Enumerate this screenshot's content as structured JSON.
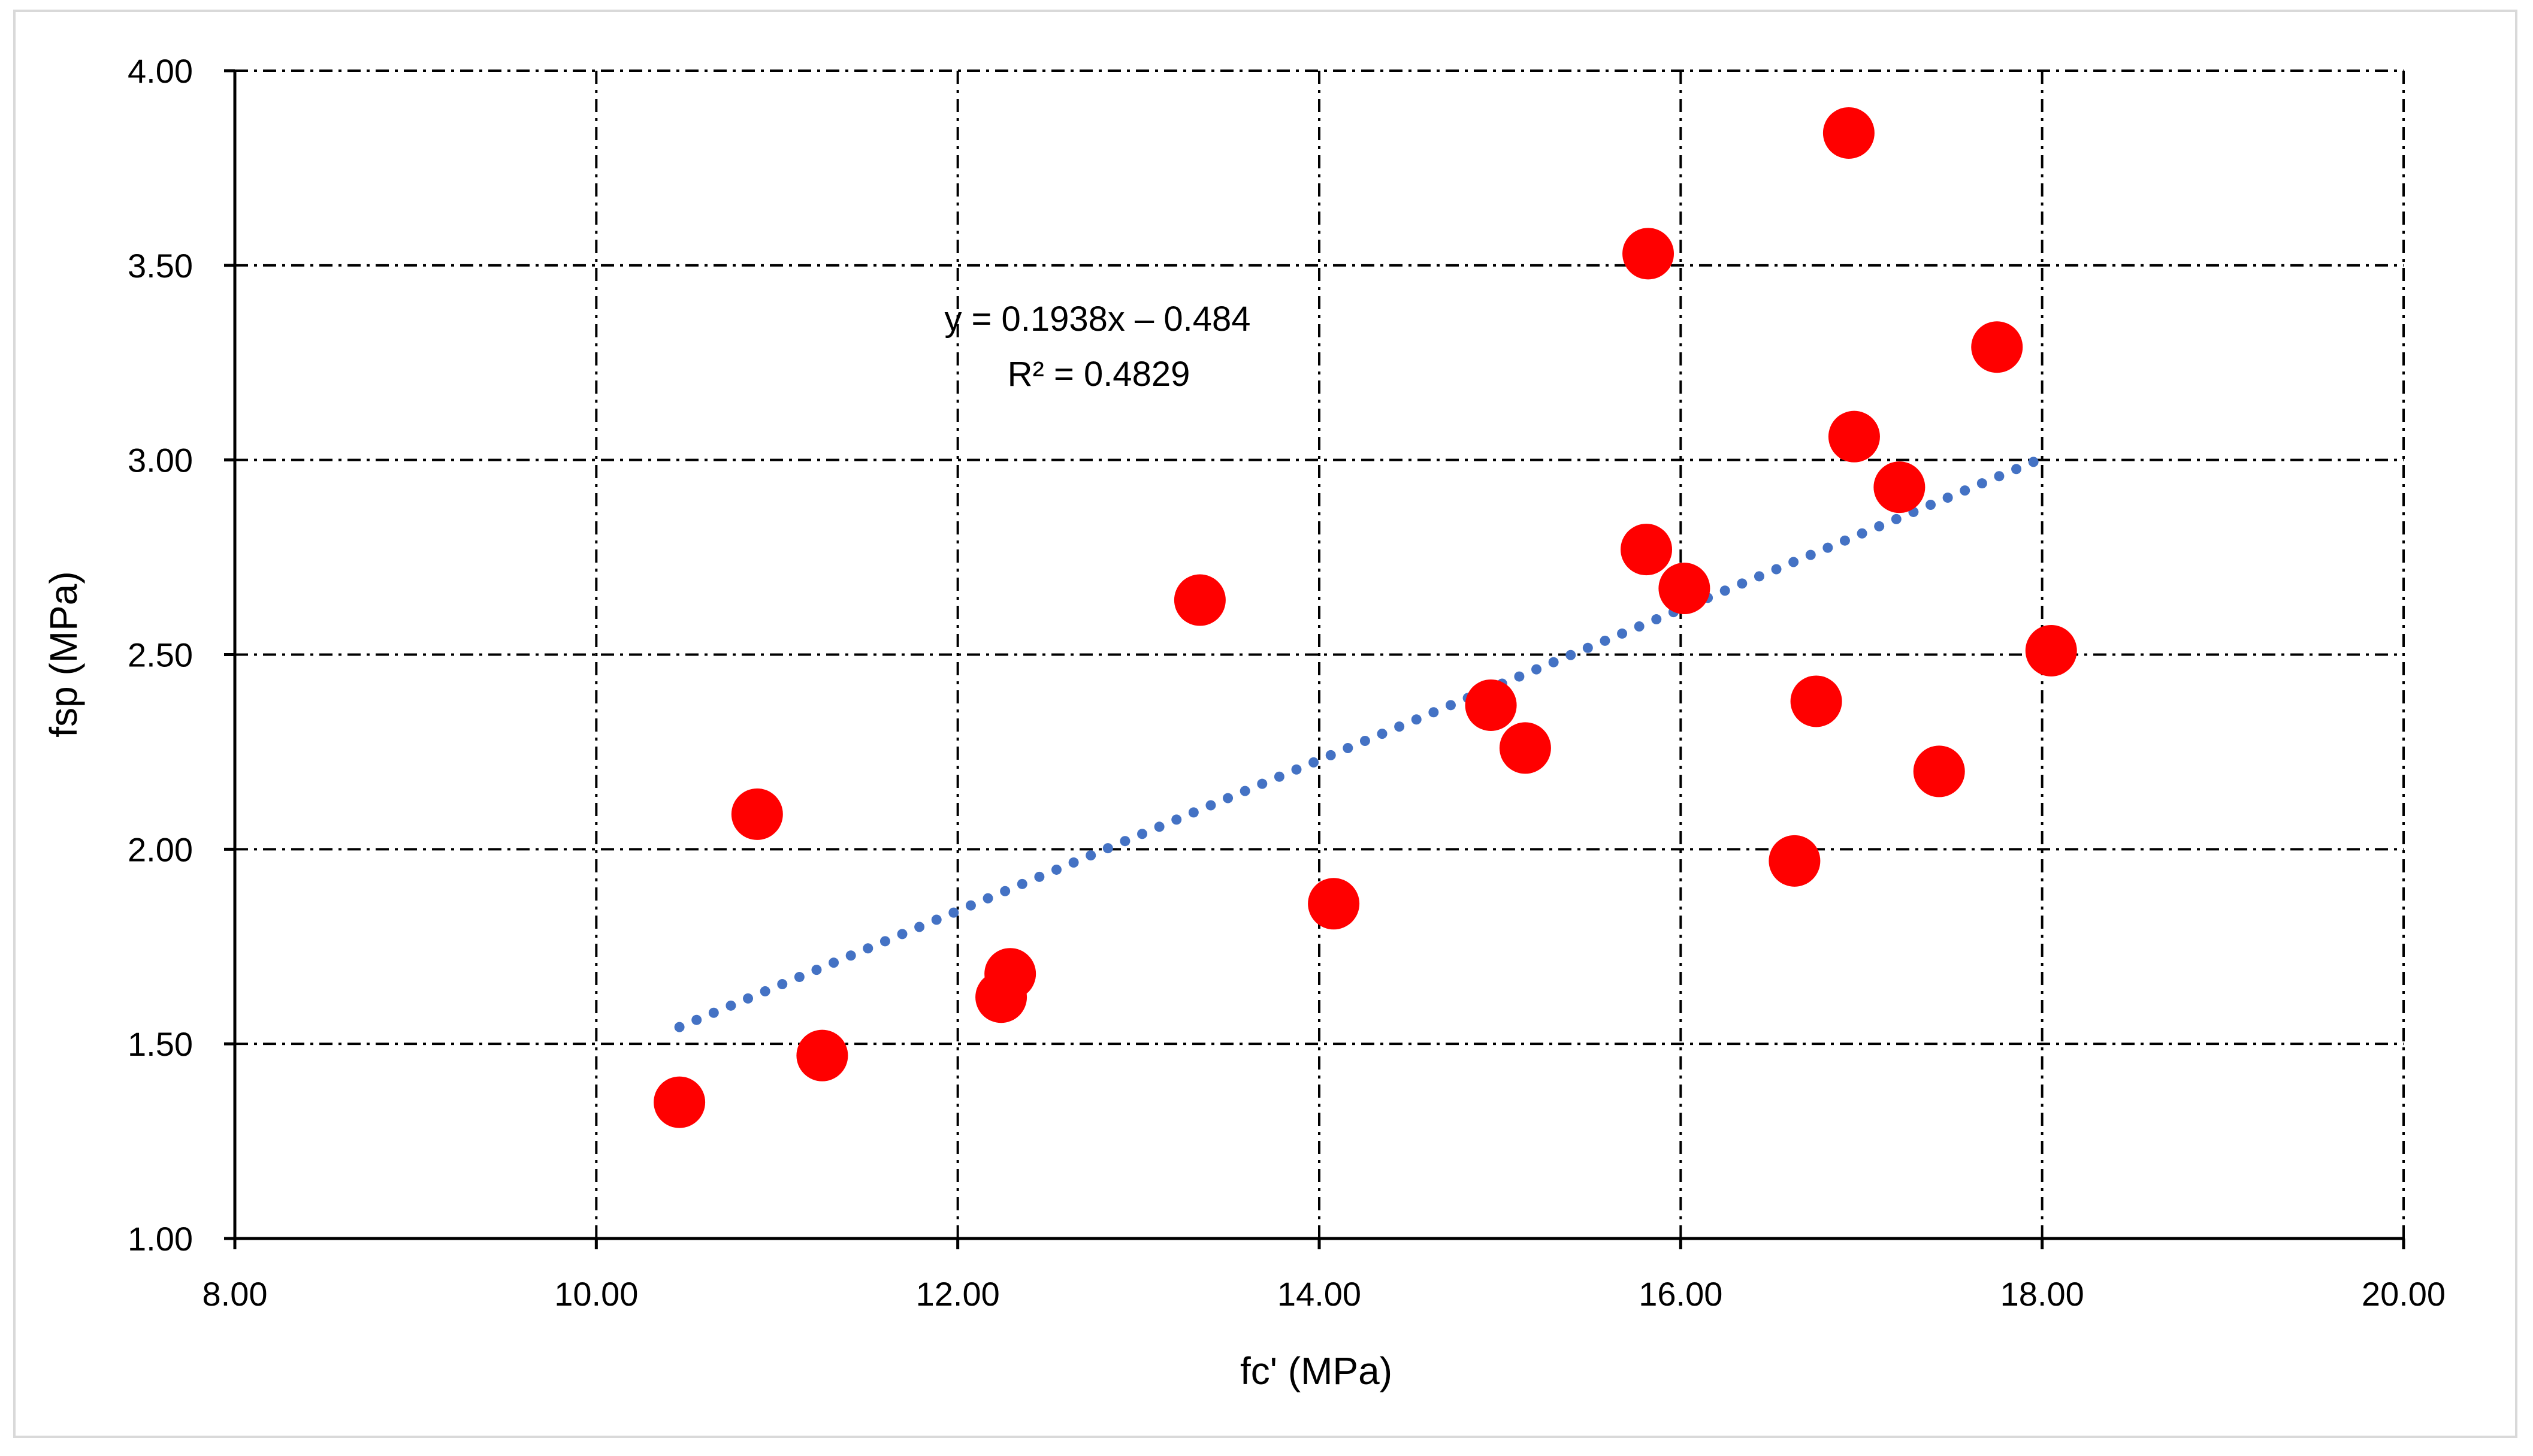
{
  "chart_data": {
    "type": "scatter",
    "title": "",
    "xlabel": "fc' (MPa)",
    "ylabel": "fsp (MPa)",
    "xlim": [
      8,
      20
    ],
    "ylim": [
      1,
      4
    ],
    "x_ticks": [
      "8.00",
      "10.00",
      "12.00",
      "14.00",
      "16.00",
      "18.00",
      "20.00"
    ],
    "y_ticks": [
      "1.00",
      "1.50",
      "2.00",
      "2.50",
      "3.00",
      "3.50",
      "4.00"
    ],
    "grid": true,
    "grid_style": "dash-dot",
    "legend": "none",
    "series": [
      {
        "marker_color": "#ff0000",
        "points": [
          {
            "x": 10.46,
            "y": 1.35
          },
          {
            "x": 10.89,
            "y": 2.09
          },
          {
            "x": 11.25,
            "y": 1.47
          },
          {
            "x": 12.24,
            "y": 1.62
          },
          {
            "x": 12.29,
            "y": 1.68
          },
          {
            "x": 13.34,
            "y": 2.64
          },
          {
            "x": 14.08,
            "y": 1.86
          },
          {
            "x": 14.95,
            "y": 2.37
          },
          {
            "x": 15.14,
            "y": 2.26
          },
          {
            "x": 15.81,
            "y": 2.77
          },
          {
            "x": 15.82,
            "y": 3.53
          },
          {
            "x": 16.02,
            "y": 2.67
          },
          {
            "x": 16.63,
            "y": 1.97
          },
          {
            "x": 16.75,
            "y": 2.38
          },
          {
            "x": 16.93,
            "y": 3.84
          },
          {
            "x": 16.96,
            "y": 3.06
          },
          {
            "x": 17.21,
            "y": 2.93
          },
          {
            "x": 17.43,
            "y": 2.2
          },
          {
            "x": 17.75,
            "y": 3.29
          },
          {
            "x": 18.05,
            "y": 2.51
          }
        ]
      }
    ],
    "trendline": {
      "type": "linear",
      "style": "dotted",
      "color": "#4472c4",
      "slope": 0.1938,
      "intercept": -0.484,
      "x_range": [
        10.46,
        17.97
      ],
      "equation": "y = 0.1938x – 0.484",
      "r_squared": "R² = 0.4829"
    }
  },
  "colors": {
    "axis": "#000000",
    "grid": "#000000",
    "frame": "#d9d9d9",
    "marker": "#ff0000",
    "trend": "#4472c4"
  }
}
